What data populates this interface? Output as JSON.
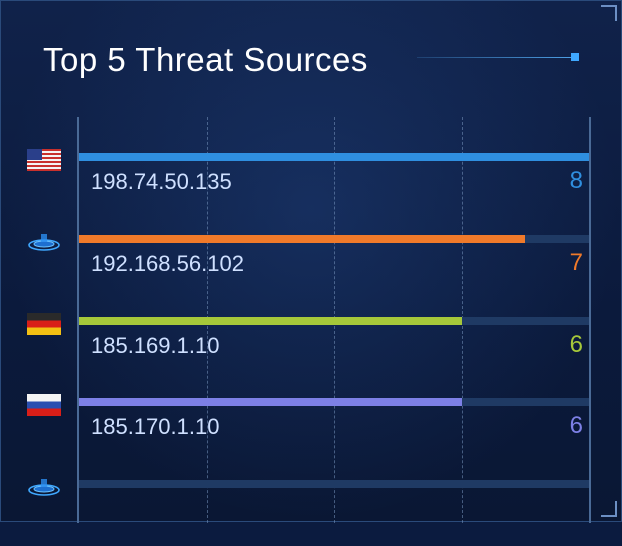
{
  "panel": {
    "title": "Top 5 Threat Sources"
  },
  "chart_data": {
    "type": "bar",
    "orientation": "horizontal",
    "title": "Top 5 Threat Sources",
    "xlim": [
      0,
      8
    ],
    "grid": true,
    "categories": [
      "198.74.50.135",
      "192.168.56.102",
      "185.169.1.10",
      "185.170.1.10",
      ""
    ],
    "values": [
      8,
      7,
      6,
      6,
      null
    ],
    "value_labels": [
      "8",
      "7",
      "6",
      "6",
      ""
    ],
    "colors": [
      "#2f8fe0",
      "#f07a2a",
      "#a6c83a",
      "#7d80e6",
      "#2f8fe0"
    ],
    "icons": [
      "us-flag-icon",
      "network-globe-icon",
      "germany-flag-icon",
      "russia-flag-icon",
      "network-globe-icon"
    ]
  }
}
